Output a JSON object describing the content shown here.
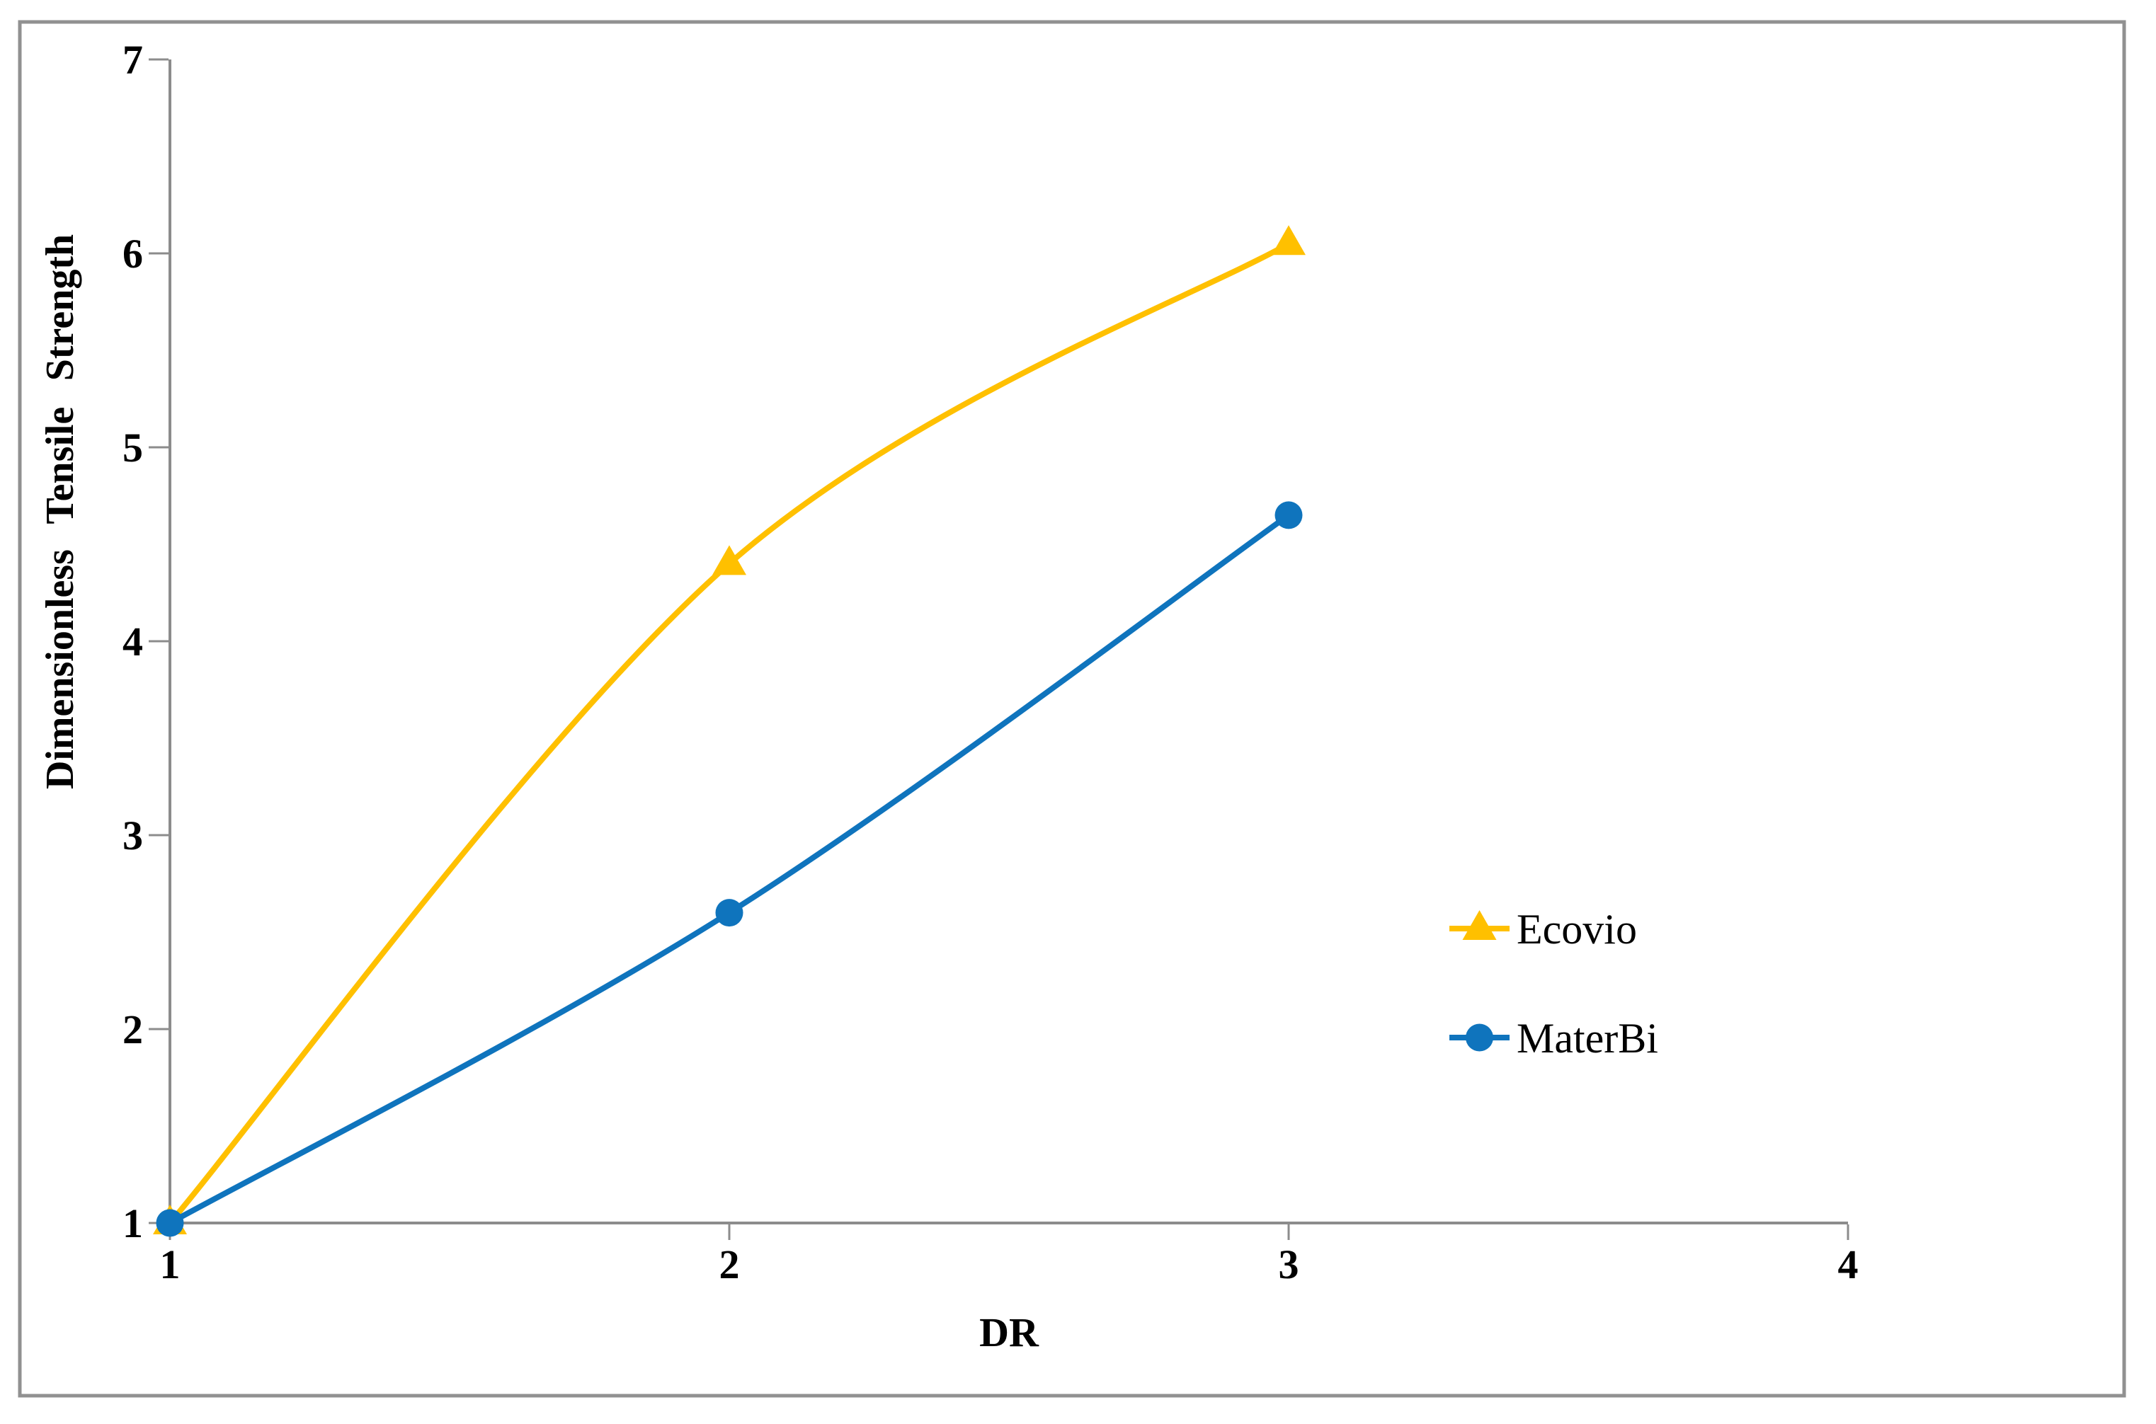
{
  "chart_data": {
    "type": "line",
    "title": "",
    "xlabel": "DR",
    "ylabel": "Dimensionless Tensile Strength",
    "x_ticks": [
      1,
      2,
      3,
      4
    ],
    "y_ticks": [
      1,
      2,
      3,
      4,
      5,
      6,
      7
    ],
    "xlim": [
      1,
      4
    ],
    "ylim": [
      1,
      7
    ],
    "grid": false,
    "legend_position": "middle-right",
    "line_style": "smooth",
    "series": [
      {
        "name": "Ecovio",
        "marker": "triangle",
        "color": "#FFC000",
        "x": [
          1,
          2,
          3
        ],
        "y": [
          1.0,
          4.4,
          6.05
        ]
      },
      {
        "name": "MaterBi",
        "marker": "circle",
        "color": "#0F74BD",
        "x": [
          1,
          2,
          3
        ],
        "y": [
          1.0,
          2.6,
          4.65
        ]
      }
    ],
    "style": {
      "axis_color": "#8C8C8C",
      "border_color": "#919191",
      "text_color": "#000000",
      "background": "#FFFFFF"
    }
  }
}
